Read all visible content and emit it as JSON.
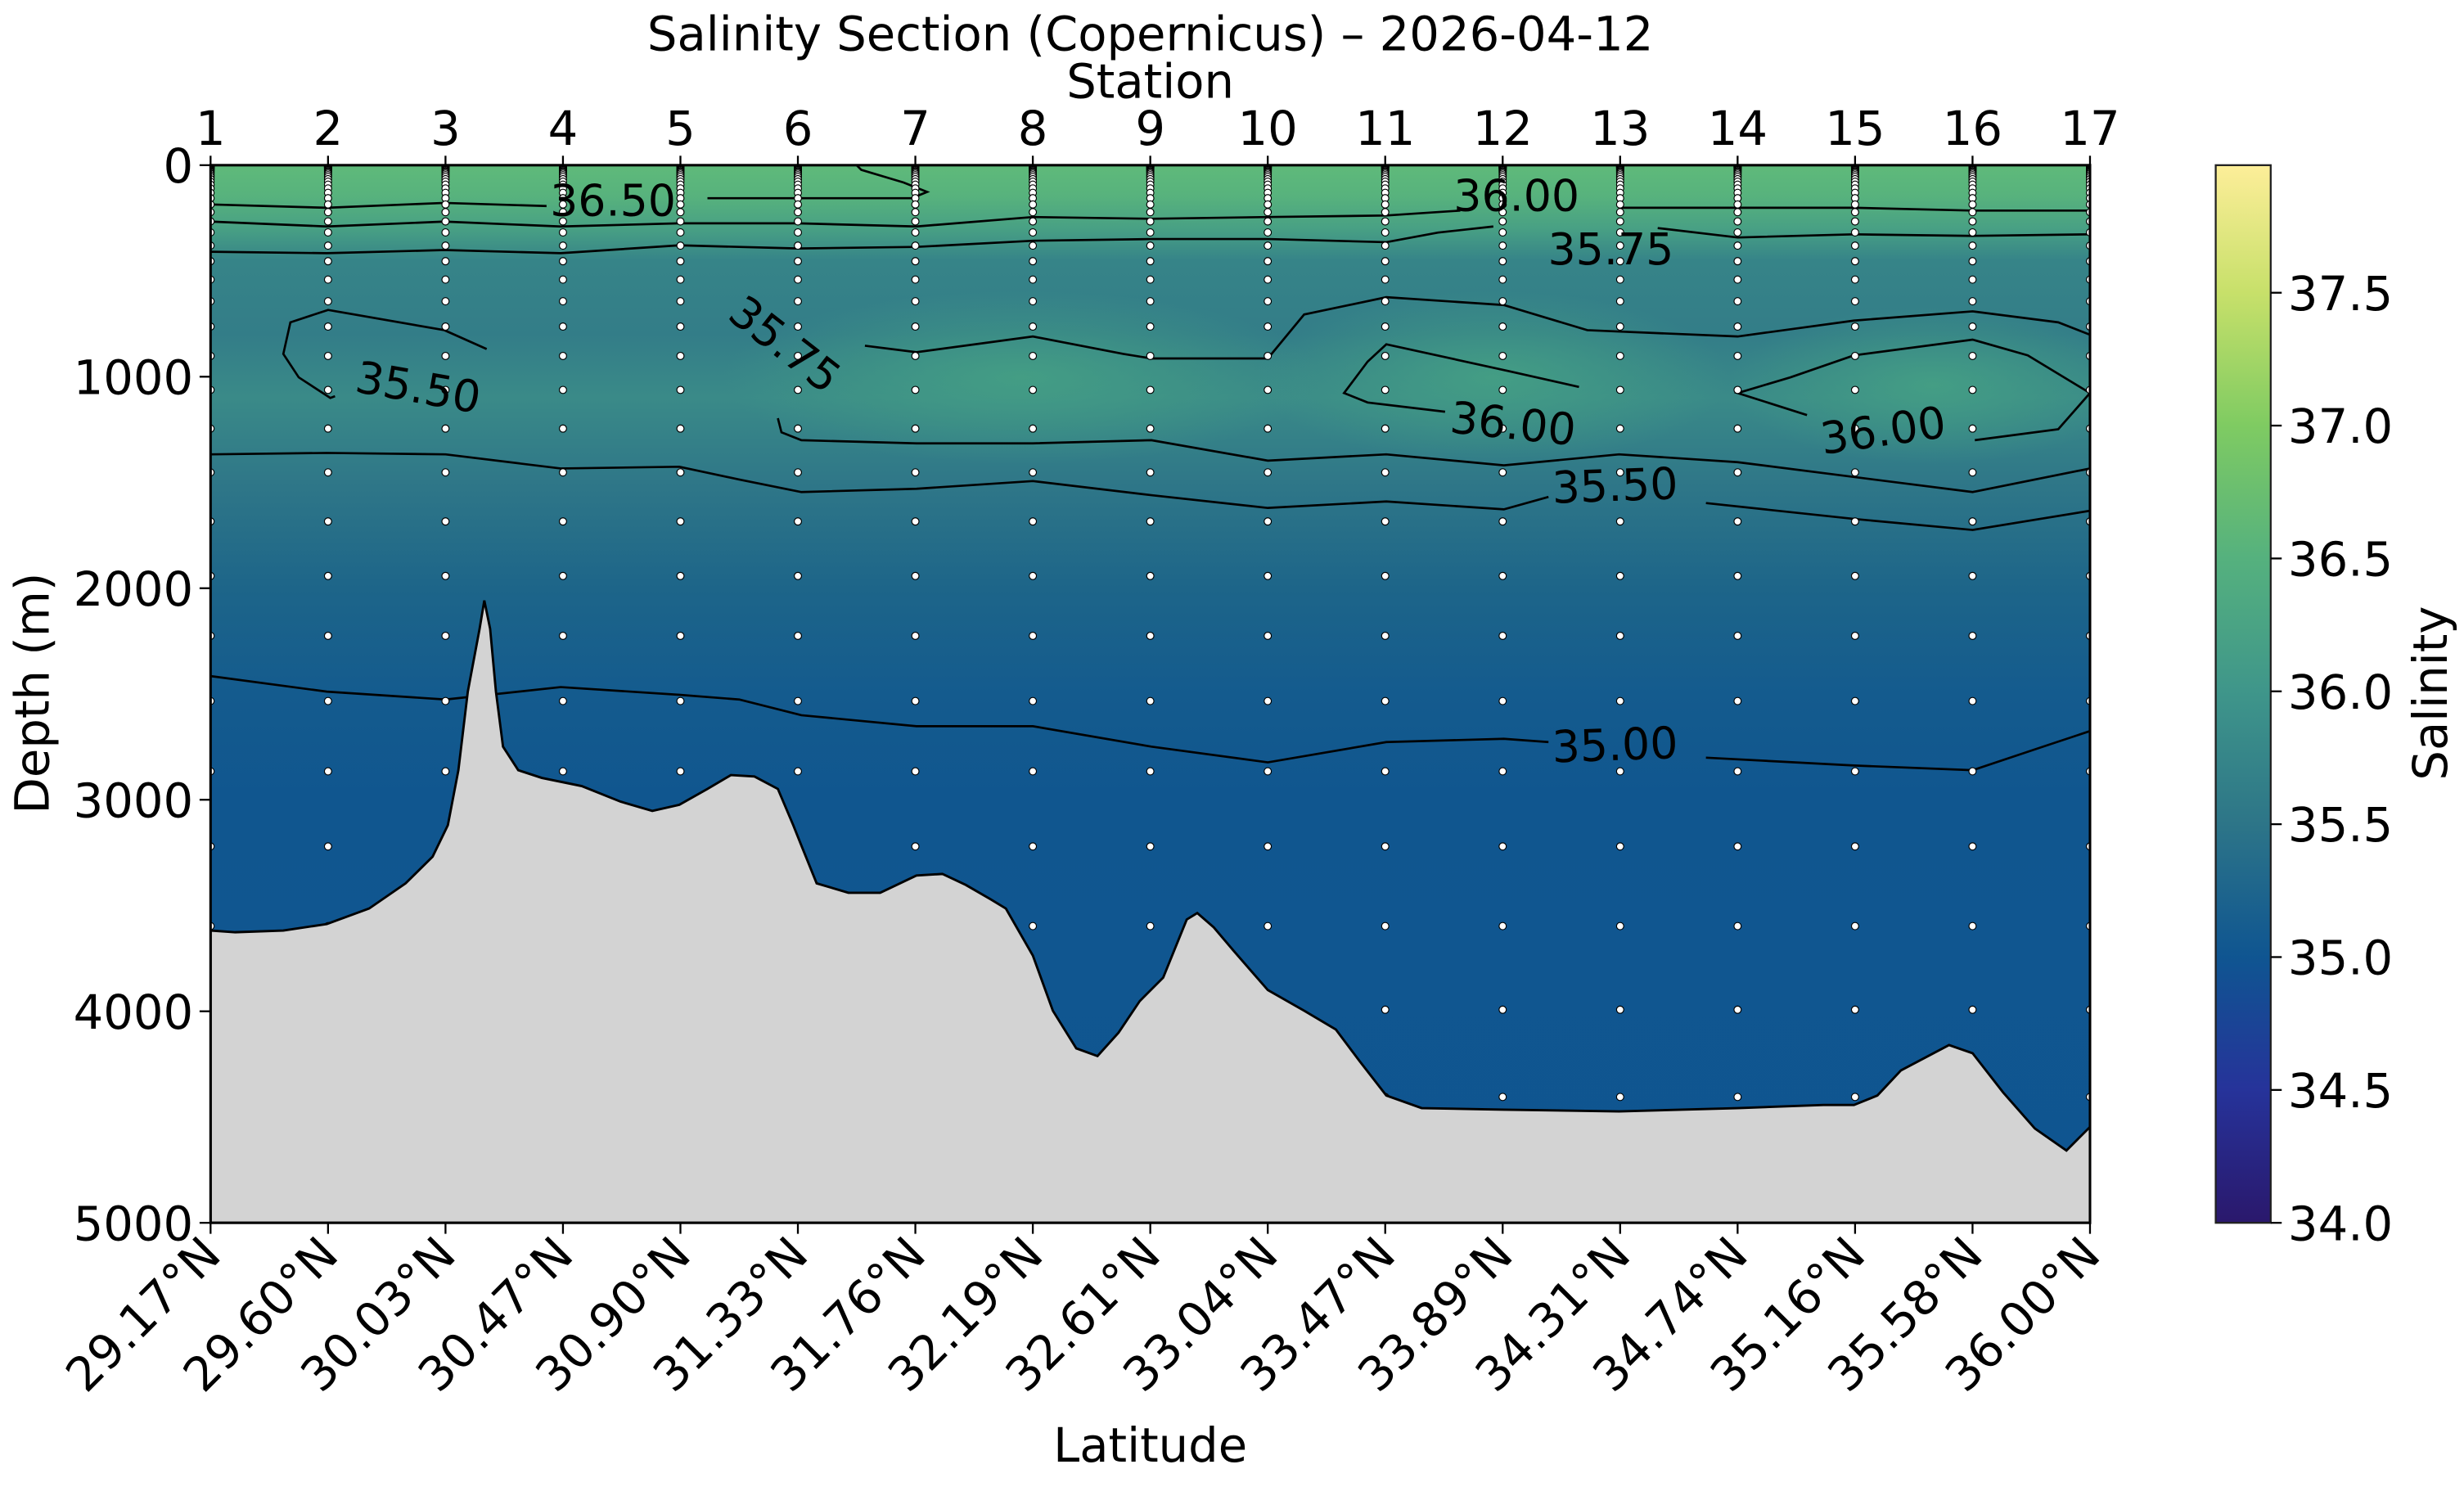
{
  "chart_data": {
    "type": "section",
    "title": "Salinity Section (Copernicus) – 2026-04-12",
    "xlabel": "Latitude",
    "x2label": "Station",
    "ylabel": "Depth (m)",
    "colorbar_label": "Salinity",
    "stations": [
      "1",
      "2",
      "3",
      "4",
      "5",
      "6",
      "7",
      "8",
      "9",
      "10",
      "11",
      "12",
      "13",
      "14",
      "15",
      "16",
      "17"
    ],
    "latitudes": [
      "29.17°N",
      "29.60°N",
      "30.03°N",
      "30.47°N",
      "30.90°N",
      "31.33°N",
      "31.76°N",
      "32.19°N",
      "32.61°N",
      "33.04°N",
      "33.47°N",
      "33.89°N",
      "34.31°N",
      "34.74°N",
      "35.16°N",
      "35.58°N",
      "36.00°N"
    ],
    "ylim": [
      5000,
      0
    ],
    "yticks": [
      "0",
      "1000",
      "2000",
      "3000",
      "4000",
      "5000"
    ],
    "colorbar": {
      "range": [
        34.0,
        37.98
      ],
      "ticks": [
        "34.0",
        "34.5",
        "35.0",
        "35.5",
        "36.0",
        "36.5",
        "37.0",
        "37.5"
      ],
      "colormap": "haline"
    },
    "colormap_stops": [
      {
        "value": 34.0,
        "color": "#2a186c"
      },
      {
        "value": 34.5,
        "color": "#26339a"
      },
      {
        "value": 35.0,
        "color": "#0f5591"
      },
      {
        "value": 35.5,
        "color": "#2d7588"
      },
      {
        "value": 36.0,
        "color": "#3f968a"
      },
      {
        "value": 36.5,
        "color": "#55b17e"
      },
      {
        "value": 37.0,
        "color": "#7fcb62"
      },
      {
        "value": 37.5,
        "color": "#c7e06a"
      },
      {
        "value": 37.98,
        "color": "#fdee99"
      }
    ],
    "sample_depths": [
      0.5,
      1.5,
      2.6,
      3.8,
      5.1,
      6.4,
      8.0,
      9.6,
      11.4,
      13.5,
      15.8,
      18.5,
      21.6,
      25.2,
      29.4,
      34.4,
      40.3,
      47.4,
      55.8,
      65.8,
      77.9,
      92.3,
      109.7,
      130.7,
      155.9,
      186.1,
      222.5,
      266.0,
      318.1,
      380.2,
      453.9,
      541.1,
      643.6,
      763.3,
      902.3,
      1062.4,
      1245.3,
      1452.3,
      1684.3,
      1941.9,
      2225.1,
      2533.3,
      2865.7,
      3220.8,
      3597.0,
      3992.5,
      4405.2,
      4833.3
    ],
    "bathymetry": [
      [
        1,
        3618
      ],
      [
        1.21,
        3626
      ],
      [
        1.62,
        3618
      ],
      [
        1.99,
        3588
      ],
      [
        2.35,
        3514
      ],
      [
        2.66,
        3395
      ],
      [
        2.89,
        3269
      ],
      [
        3.02,
        3120
      ],
      [
        3.11,
        2860
      ],
      [
        3.19,
        2489
      ],
      [
        3.29,
        2192
      ],
      [
        3.33,
        2058
      ],
      [
        3.38,
        2192
      ],
      [
        3.43,
        2489
      ],
      [
        3.49,
        2749
      ],
      [
        3.62,
        2860
      ],
      [
        3.82,
        2897
      ],
      [
        4.16,
        2935
      ],
      [
        4.49,
        3009
      ],
      [
        4.76,
        3053
      ],
      [
        4.99,
        3024
      ],
      [
        5.23,
        2949
      ],
      [
        5.43,
        2883
      ],
      [
        5.63,
        2890
      ],
      [
        5.83,
        2949
      ],
      [
        5.96,
        3120
      ],
      [
        6.03,
        3217
      ],
      [
        6.16,
        3395
      ],
      [
        6.43,
        3440
      ],
      [
        6.7,
        3440
      ],
      [
        7.01,
        3358
      ],
      [
        7.23,
        3351
      ],
      [
        7.43,
        3403
      ],
      [
        7.64,
        3470
      ],
      [
        7.77,
        3514
      ],
      [
        8.0,
        3737
      ],
      [
        8.17,
        3997
      ],
      [
        8.37,
        4175
      ],
      [
        8.55,
        4212
      ],
      [
        8.73,
        4101
      ],
      [
        8.91,
        3952
      ],
      [
        9.11,
        3841
      ],
      [
        9.31,
        3566
      ],
      [
        9.4,
        3536
      ],
      [
        9.54,
        3603
      ],
      [
        9.71,
        3715
      ],
      [
        10.0,
        3900
      ],
      [
        10.31,
        3997
      ],
      [
        10.58,
        4086
      ],
      [
        10.78,
        4235
      ],
      [
        11.01,
        4398
      ],
      [
        11.31,
        4458
      ],
      [
        12.01,
        4465
      ],
      [
        12.99,
        4473
      ],
      [
        14.0,
        4458
      ],
      [
        14.73,
        4443
      ],
      [
        14.99,
        4443
      ],
      [
        15.19,
        4398
      ],
      [
        15.39,
        4279
      ],
      [
        15.8,
        4160
      ],
      [
        16.0,
        4198
      ],
      [
        16.26,
        4383
      ],
      [
        16.53,
        4554
      ],
      [
        16.8,
        4658
      ],
      [
        17.0,
        4547
      ]
    ],
    "contours": [
      {
        "level": 36.5,
        "points": [
          [
            1,
            186
          ],
          [
            1.99,
            201
          ],
          [
            2.99,
            178
          ],
          [
            3.86,
            193
          ]
        ]
      },
      {
        "level": 36.5,
        "points": [
          [
            5.23,
            156
          ],
          [
            6.97,
            156
          ],
          [
            7.1,
            126
          ],
          [
            6.9,
            82
          ],
          [
            6.54,
            22
          ],
          [
            6.5,
            0
          ]
        ]
      },
      {
        "level": 36.0,
        "points": [
          [
            1,
            267
          ],
          [
            1.99,
            290
          ],
          [
            2.99,
            267
          ],
          [
            3.98,
            290
          ],
          [
            4.99,
            275
          ],
          [
            6.0,
            275
          ],
          [
            7.01,
            290
          ],
          [
            8.0,
            245
          ],
          [
            9.01,
            253
          ],
          [
            10.0,
            245
          ],
          [
            11.01,
            238
          ],
          [
            11.64,
            215
          ]
        ]
      },
      {
        "level": 36.0,
        "points": [
          [
            12.99,
            201
          ],
          [
            14.0,
            201
          ],
          [
            14.99,
            201
          ],
          [
            16.0,
            215
          ],
          [
            17.0,
            215
          ]
        ]
      },
      {
        "level": 35.75,
        "points": [
          [
            1,
            409
          ],
          [
            1.99,
            416
          ],
          [
            2.99,
            401
          ],
          [
            3.98,
            416
          ],
          [
            4.99,
            379
          ],
          [
            6.0,
            394
          ],
          [
            7.01,
            386
          ],
          [
            8.0,
            357
          ],
          [
            9.01,
            349
          ],
          [
            10.0,
            349
          ],
          [
            11.01,
            364
          ],
          [
            11.45,
            319
          ],
          [
            11.92,
            290
          ]
        ]
      },
      {
        "level": 35.75,
        "points": [
          [
            13.32,
            297
          ],
          [
            14.0,
            342
          ],
          [
            14.99,
            327
          ],
          [
            16.0,
            334
          ],
          [
            17.0,
            327
          ]
        ]
      },
      {
        "level": 35.75,
        "points": [
          [
            6.57,
            854
          ],
          [
            7.01,
            884
          ],
          [
            8.0,
            810
          ],
          [
            8.77,
            892
          ],
          [
            9.01,
            914
          ],
          [
            10.0,
            914
          ],
          [
            10.31,
            706
          ],
          [
            11.01,
            624
          ],
          [
            12.01,
            661
          ],
          [
            12.72,
            780
          ],
          [
            14.0,
            810
          ],
          [
            14.99,
            735
          ],
          [
            16.0,
            691
          ],
          [
            16.73,
            743
          ],
          [
            17.0,
            802
          ]
        ]
      },
      {
        "level": 35.5,
        "points": [
          [
            3.35,
            869
          ],
          [
            2.99,
            780
          ],
          [
            2.0,
            684
          ],
          [
            1.68,
            743
          ],
          [
            1.62,
            892
          ],
          [
            1.75,
            1003
          ],
          [
            2.02,
            1100
          ],
          [
            2.06,
            1092
          ]
        ]
      },
      {
        "level": 36.0,
        "points": [
          [
            12.65,
            1048
          ],
          [
            12.05,
            973
          ],
          [
            11.01,
            847
          ],
          [
            10.85,
            929
          ],
          [
            10.65,
            1077
          ],
          [
            10.85,
            1122
          ],
          [
            11.51,
            1166
          ]
        ]
      },
      {
        "level": 36.0,
        "points": [
          [
            14.59,
            1181
          ],
          [
            14.0,
            1077
          ],
          [
            14.45,
            1003
          ],
          [
            14.99,
            899
          ],
          [
            16.0,
            825
          ],
          [
            16.47,
            899
          ],
          [
            17.0,
            1077
          ],
          [
            16.73,
            1248
          ],
          [
            16.02,
            1300
          ]
        ]
      },
      {
        "level": 35.75,
        "points": [
          [
            5.83,
            1196
          ],
          [
            5.86,
            1263
          ],
          [
            6.03,
            1300
          ],
          [
            7.01,
            1315
          ],
          [
            8.0,
            1315
          ],
          [
            9.01,
            1300
          ],
          [
            10.0,
            1397
          ],
          [
            11.01,
            1367
          ],
          [
            12.01,
            1419
          ],
          [
            12.99,
            1367
          ],
          [
            14.0,
            1404
          ],
          [
            16.0,
            1545
          ],
          [
            17.0,
            1434
          ]
        ]
      },
      {
        "level": 35.5,
        "points": [
          [
            1,
            1367
          ],
          [
            1.99,
            1360
          ],
          [
            3.0,
            1367
          ],
          [
            3.98,
            1434
          ],
          [
            4.99,
            1426
          ],
          [
            5.5,
            1486
          ],
          [
            6.03,
            1545
          ],
          [
            7.01,
            1530
          ],
          [
            8.0,
            1493
          ],
          [
            9.01,
            1560
          ],
          [
            10.0,
            1620
          ],
          [
            11.01,
            1590
          ],
          [
            12.01,
            1627
          ],
          [
            12.39,
            1568
          ]
        ]
      },
      {
        "level": 35.5,
        "points": [
          [
            13.73,
            1597
          ],
          [
            14.99,
            1672
          ],
          [
            16.0,
            1724
          ],
          [
            17.0,
            1634
          ]
        ]
      },
      {
        "level": 35.0,
        "points": [
          [
            1,
            2415
          ],
          [
            1.99,
            2489
          ],
          [
            3.0,
            2526
          ],
          [
            3.98,
            2467
          ],
          [
            4.99,
            2504
          ],
          [
            5.5,
            2526
          ],
          [
            6.03,
            2600
          ],
          [
            7.01,
            2652
          ],
          [
            8.0,
            2652
          ],
          [
            9.01,
            2749
          ],
          [
            10.0,
            2823
          ],
          [
            11.01,
            2727
          ],
          [
            12.01,
            2712
          ],
          [
            12.39,
            2727
          ]
        ]
      },
      {
        "level": 35.0,
        "points": [
          [
            13.73,
            2801
          ],
          [
            14.99,
            2838
          ],
          [
            16.0,
            2860
          ],
          [
            16.6,
            2749
          ],
          [
            17.0,
            2675
          ]
        ]
      }
    ],
    "contour_labels": [
      "36.50",
      "36.00",
      "35.75",
      "35.75",
      "35.50",
      "36.00",
      "36.00",
      "35.50",
      "35.00"
    ],
    "land_color": "#d3d3d3"
  }
}
